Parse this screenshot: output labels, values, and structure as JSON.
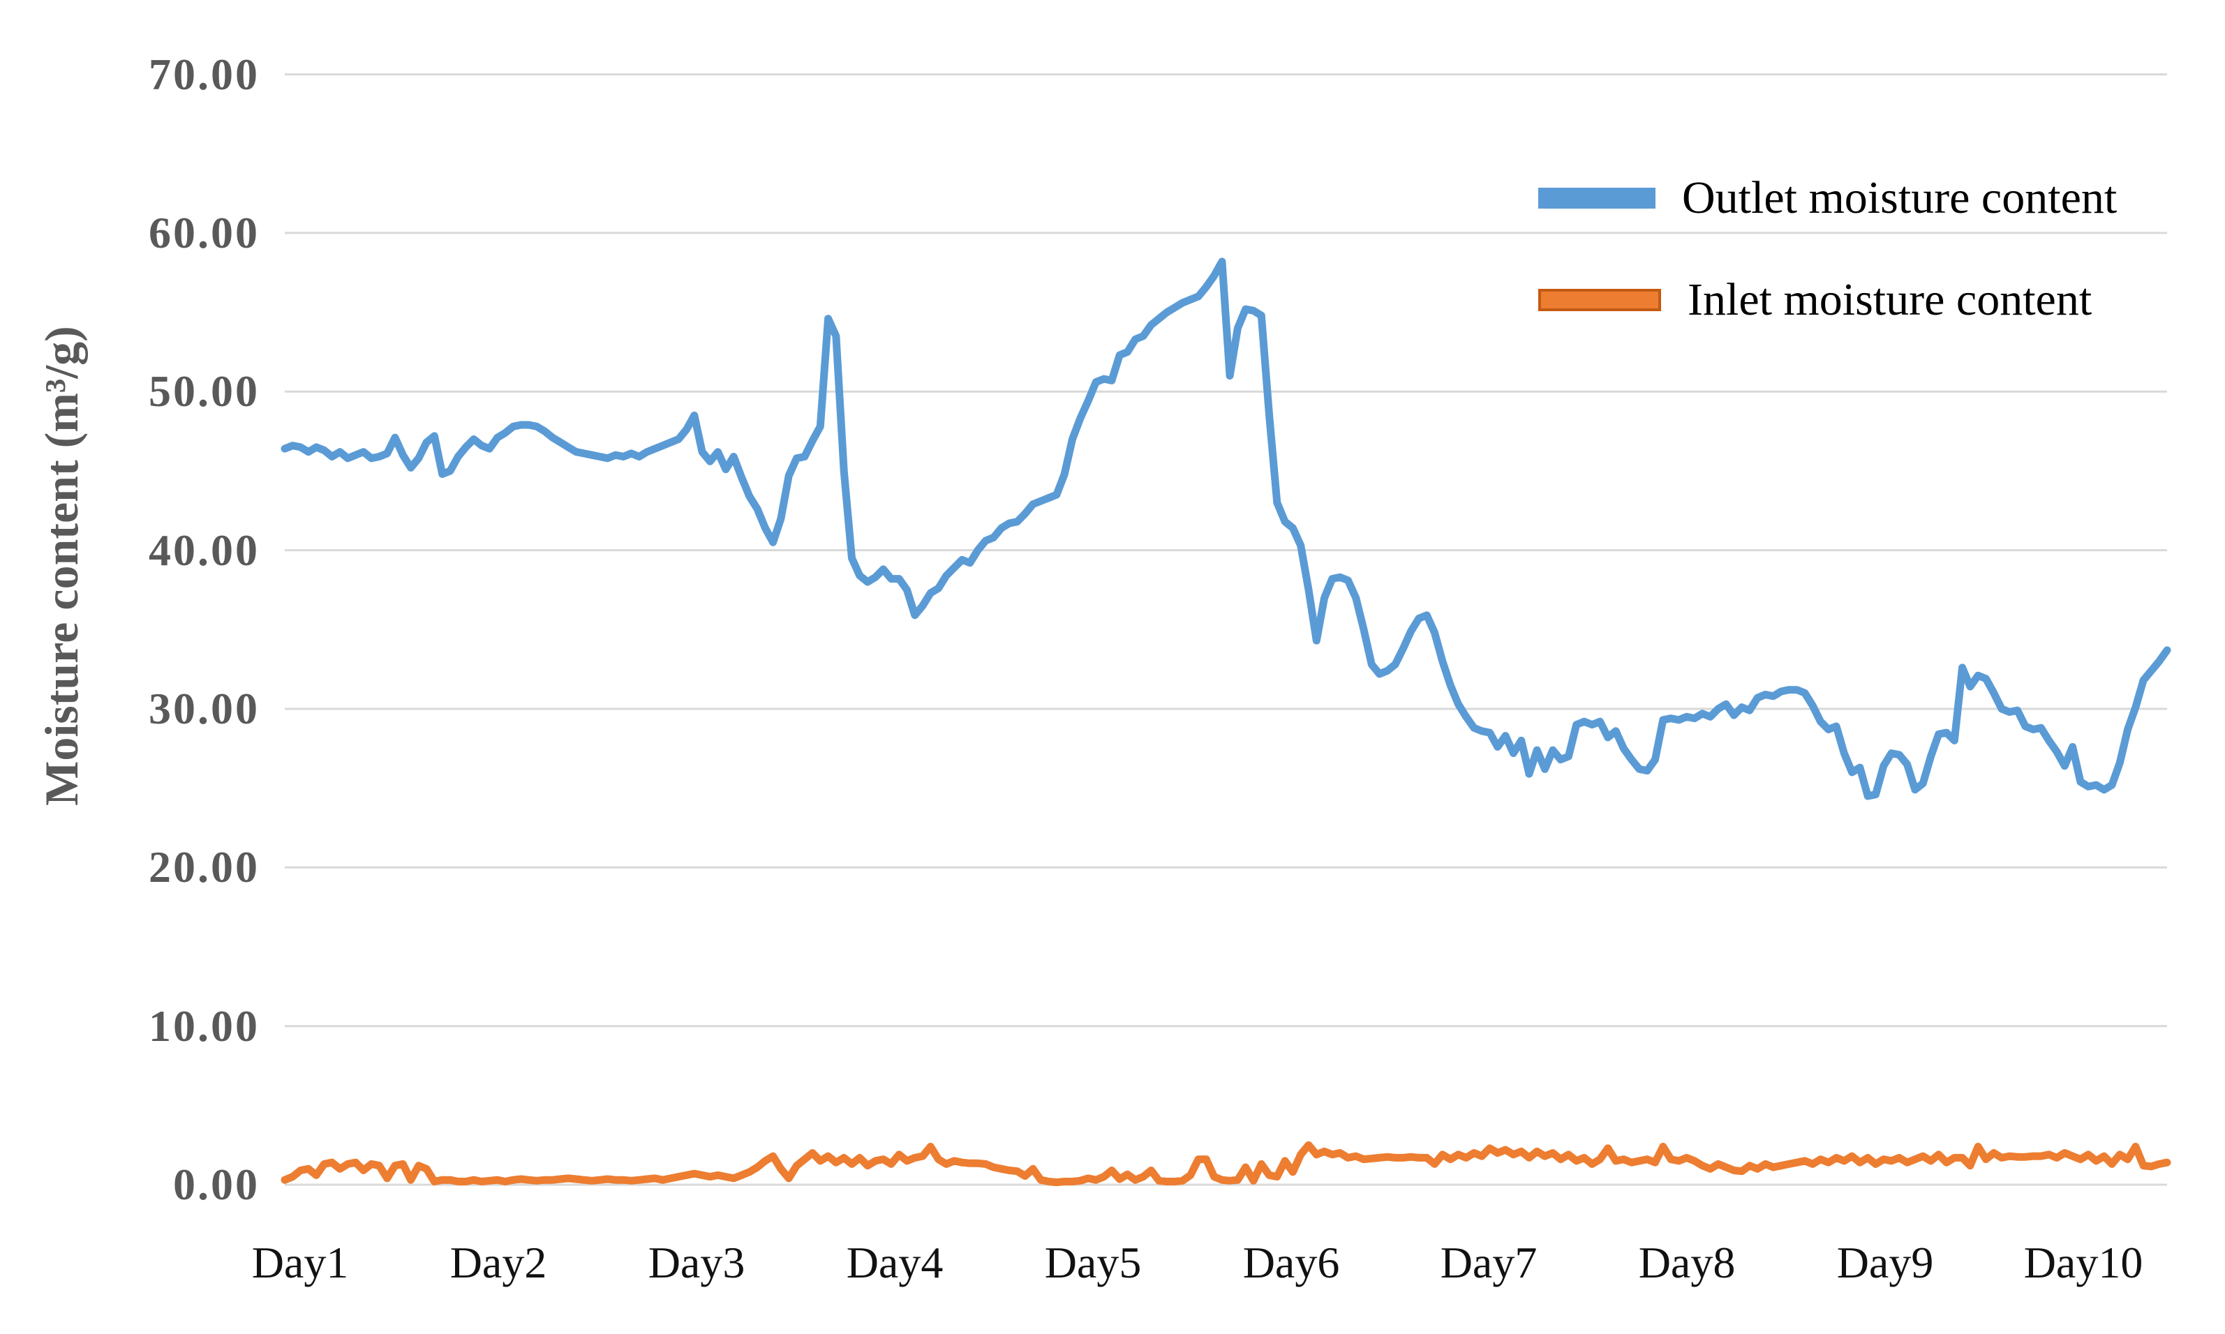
{
  "colors": {
    "outlet_line": "#5B9BD5",
    "inlet_line": "#ED7D31",
    "inlet_swatch_border": "#C55A11",
    "gridline": "#D9D9D9",
    "axis_tick_text": "#595959",
    "x_tick_text": "#111111",
    "background": "#FFFFFF"
  },
  "chart_data": {
    "type": "line",
    "title": "",
    "xlabel": "",
    "ylabel": "Moisture content (m³/g)",
    "ylim": [
      0,
      70
    ],
    "grid": "horizontal",
    "legend_position": "upper right",
    "y_ticks": [
      {
        "value": 70,
        "label": "70.00"
      },
      {
        "value": 60,
        "label": "60.00"
      },
      {
        "value": 50,
        "label": "50.00"
      },
      {
        "value": 40,
        "label": "40.00"
      },
      {
        "value": 30,
        "label": "30.00"
      },
      {
        "value": 20,
        "label": "20.00"
      },
      {
        "value": 10,
        "label": "10.00"
      },
      {
        "value": 0,
        "label": "0.00"
      }
    ],
    "x_categories": [
      "Day1",
      "Day2",
      "Day3",
      "Day4",
      "Day5",
      "Day6",
      "Day7",
      "Day8",
      "Day9",
      "Day10"
    ],
    "series": [
      {
        "name": "Outlet moisture content",
        "color": "#5B9BD5",
        "values": [
          46.4,
          46.6,
          46.5,
          46.2,
          46.5,
          46.3,
          45.9,
          46.2,
          45.8,
          46.0,
          46.2,
          45.8,
          45.9,
          46.1,
          47.1,
          46.0,
          45.2,
          45.8,
          46.8,
          47.2,
          44.8,
          45.0,
          45.9,
          46.5,
          47.0,
          46.6,
          46.4,
          47.1,
          47.4,
          47.8,
          47.9,
          47.9,
          47.8,
          47.5,
          47.1,
          46.8,
          46.5,
          46.2,
          46.1,
          46.0,
          45.9,
          45.8,
          46.0,
          45.9,
          46.1,
          45.9,
          46.2,
          46.4,
          46.6,
          46.8,
          47.0,
          47.6,
          48.5,
          46.2,
          45.6,
          46.2,
          45.1,
          45.9,
          44.6,
          43.4,
          42.6,
          41.4,
          40.5,
          42.0,
          44.7,
          45.8,
          45.9,
          46.9,
          47.8,
          54.6,
          53.5,
          45.0,
          39.5,
          38.4,
          38.0,
          38.3,
          38.8,
          38.2,
          38.2,
          37.5,
          35.9,
          36.5,
          37.3,
          37.6,
          38.4,
          38.9,
          39.4,
          39.2,
          40.0,
          40.6,
          40.8,
          41.4,
          41.7,
          41.8,
          42.3,
          42.9,
          43.1,
          43.3,
          43.5,
          44.8,
          47.0,
          48.3,
          49.4,
          50.6,
          50.8,
          50.7,
          52.3,
          52.5,
          53.3,
          53.5,
          54.2,
          54.6,
          55.0,
          55.3,
          55.6,
          55.8,
          56.0,
          56.6,
          57.3,
          58.2,
          51.0,
          54.0,
          55.2,
          55.1,
          54.8,
          48.5,
          43.0,
          41.8,
          41.4,
          40.3,
          37.5,
          34.3,
          37.0,
          38.2,
          38.3,
          38.1,
          37.0,
          35.0,
          32.8,
          32.2,
          32.4,
          32.8,
          33.8,
          34.9,
          35.7,
          35.9,
          34.8,
          33.0,
          31.5,
          30.3,
          29.5,
          28.8,
          28.6,
          28.5,
          27.6,
          28.3,
          27.2,
          28.0,
          25.9,
          27.4,
          26.2,
          27.4,
          26.8,
          27.0,
          29.0,
          29.2,
          29.0,
          29.2,
          28.2,
          28.6,
          27.5,
          26.8,
          26.2,
          26.1,
          26.8,
          29.3,
          29.4,
          29.3,
          29.5,
          29.4,
          29.7,
          29.5,
          30.0,
          30.3,
          29.6,
          30.1,
          29.9,
          30.7,
          30.9,
          30.8,
          31.1,
          31.2,
          31.2,
          31.0,
          30.2,
          29.2,
          28.7,
          28.9,
          27.2,
          26.0,
          26.3,
          24.5,
          24.6,
          26.4,
          27.2,
          27.1,
          26.5,
          24.9,
          25.3,
          27.0,
          28.4,
          28.5,
          28.0,
          32.6,
          31.4,
          32.1,
          31.9,
          31.0,
          30.0,
          29.8,
          29.9,
          28.9,
          28.7,
          28.8,
          28.0,
          27.3,
          26.4,
          27.6,
          25.4,
          25.1,
          25.2,
          24.9,
          25.2,
          26.6,
          28.7,
          30.1,
          31.8,
          32.4,
          33.0,
          33.7
        ]
      },
      {
        "name": "Inlet moisture content",
        "color": "#ED7D31",
        "border_color": "#C55A11",
        "values": [
          0.3,
          0.5,
          0.9,
          1.0,
          0.6,
          1.3,
          1.4,
          1.0,
          1.3,
          1.4,
          0.9,
          1.3,
          1.2,
          0.4,
          1.2,
          1.3,
          0.3,
          1.2,
          1.0,
          0.2,
          0.3,
          0.3,
          0.2,
          0.2,
          0.3,
          0.2,
          0.25,
          0.3,
          0.2,
          0.3,
          0.35,
          0.3,
          0.25,
          0.3,
          0.3,
          0.35,
          0.4,
          0.35,
          0.3,
          0.25,
          0.3,
          0.35,
          0.3,
          0.3,
          0.25,
          0.3,
          0.35,
          0.4,
          0.3,
          0.4,
          0.5,
          0.6,
          0.7,
          0.6,
          0.5,
          0.6,
          0.5,
          0.4,
          0.6,
          0.8,
          1.1,
          1.5,
          1.8,
          1.0,
          0.4,
          1.2,
          1.6,
          2.0,
          1.5,
          1.8,
          1.4,
          1.7,
          1.3,
          1.7,
          1.2,
          1.5,
          1.6,
          1.3,
          1.9,
          1.5,
          1.7,
          1.8,
          2.4,
          1.6,
          1.3,
          1.5,
          1.4,
          1.35,
          1.35,
          1.3,
          1.1,
          1.0,
          0.9,
          0.85,
          0.55,
          1.0,
          0.3,
          0.2,
          0.15,
          0.2,
          0.2,
          0.25,
          0.4,
          0.3,
          0.5,
          0.9,
          0.35,
          0.65,
          0.3,
          0.5,
          0.9,
          0.25,
          0.2,
          0.2,
          0.25,
          0.6,
          1.6,
          1.6,
          0.5,
          0.3,
          0.25,
          0.3,
          1.1,
          0.25,
          1.3,
          0.6,
          0.5,
          1.5,
          0.8,
          1.9,
          2.5,
          1.9,
          2.1,
          1.9,
          2.0,
          1.7,
          1.8,
          1.6,
          1.65,
          1.7,
          1.75,
          1.7,
          1.7,
          1.75,
          1.7,
          1.7,
          1.3,
          1.9,
          1.6,
          1.9,
          1.7,
          2.0,
          1.8,
          2.3,
          2.0,
          2.2,
          1.9,
          2.1,
          1.7,
          2.1,
          1.8,
          2.0,
          1.6,
          1.9,
          1.5,
          1.7,
          1.3,
          1.6,
          2.3,
          1.5,
          1.6,
          1.4,
          1.5,
          1.6,
          1.4,
          2.4,
          1.6,
          1.5,
          1.7,
          1.5,
          1.2,
          1.0,
          1.3,
          1.1,
          0.9,
          0.85,
          1.2,
          1.0,
          1.3,
          1.1,
          1.2,
          1.3,
          1.4,
          1.5,
          1.3,
          1.6,
          1.4,
          1.7,
          1.5,
          1.8,
          1.4,
          1.7,
          1.3,
          1.6,
          1.5,
          1.7,
          1.4,
          1.6,
          1.8,
          1.5,
          1.9,
          1.4,
          1.7,
          1.7,
          1.2,
          2.4,
          1.6,
          2.0,
          1.7,
          1.8,
          1.75,
          1.75,
          1.8,
          1.8,
          1.9,
          1.7,
          2.0,
          1.8,
          1.6,
          1.9,
          1.5,
          1.8,
          1.3,
          1.9,
          1.6,
          2.4,
          1.2,
          1.15,
          1.3,
          1.4
        ]
      }
    ]
  },
  "legend": {
    "outlet_label": "Outlet moisture content",
    "inlet_label": "Inlet moisture content"
  },
  "axes": {
    "y_title": "Moisture content (m³/g)"
  }
}
